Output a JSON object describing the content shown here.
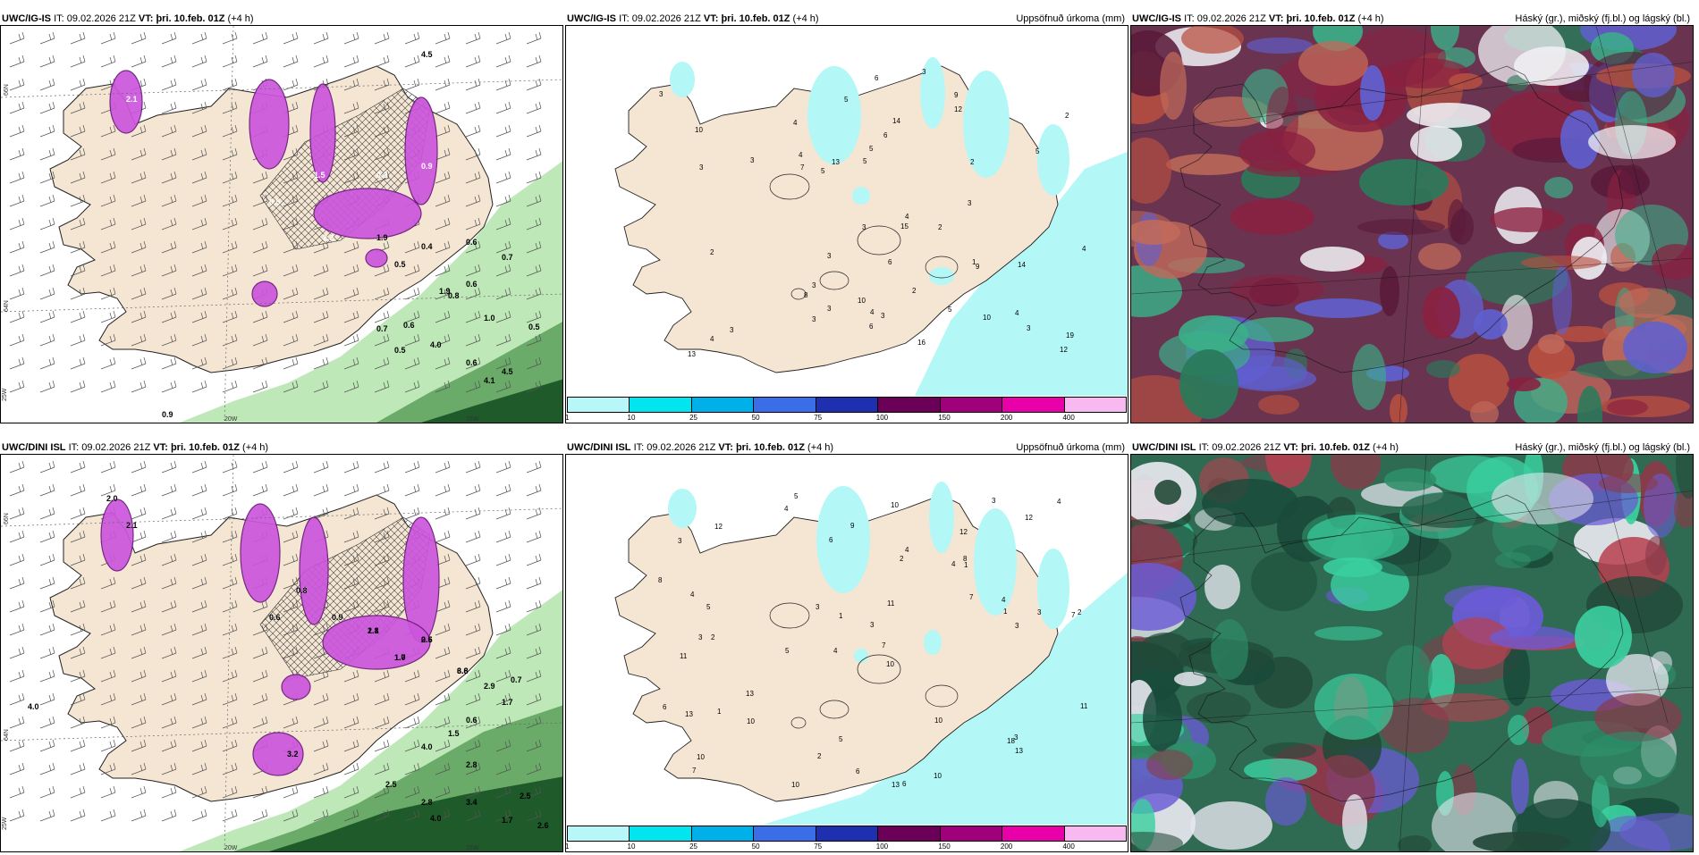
{
  "panels": [
    {
      "model": "UWC/IG-IS",
      "it_label": "IT:",
      "it": "09.02.2026 21Z",
      "vt_label": "VT:",
      "vt": "þri. 10.feb. 01Z",
      "lead": "(+4 h)",
      "right_title": "",
      "kind": "icing",
      "axis": {
        "lat_top": "66N",
        "lat_mid": "64N",
        "lon_left": "25W",
        "lon_mid": "20W",
        "lon_right": "15W"
      },
      "values": [
        "2.1",
        "0.5",
        "1.5",
        "0.8",
        "0.9",
        "2.2",
        "1.9",
        "0.5",
        "0.4",
        "0.6",
        "0.7",
        "0.6",
        "1.0",
        "0.5",
        "4.0",
        "0.6",
        "0.7",
        "0.6",
        "1.9",
        "0.8",
        "4.5",
        "4.1",
        "0.9",
        "0.5",
        "4.5"
      ]
    },
    {
      "model": "UWC/IG-IS",
      "it_label": "IT:",
      "it": "09.02.2026 21Z",
      "vt_label": "VT:",
      "vt": "þri. 10.feb. 01Z",
      "lead": "(+4 h)",
      "right_title": "Uppsöfnuð úrkoma (mm)",
      "kind": "precip",
      "values": [
        "4",
        "14",
        "4",
        "6",
        "5",
        "3",
        "4",
        "9",
        "10",
        "8",
        "12",
        "7",
        "3",
        "6",
        "5",
        "4",
        "1",
        "2",
        "3",
        "2",
        "3",
        "3",
        "6",
        "2",
        "9",
        "12",
        "13",
        "6",
        "5",
        "2",
        "3",
        "3",
        "14",
        "13",
        "15",
        "16",
        "4",
        "2",
        "3",
        "10",
        "3",
        "3",
        "4",
        "3",
        "3",
        "5",
        "5",
        "3",
        "4",
        "19",
        "10",
        "5"
      ]
    },
    {
      "model": "UWC/IG-IS",
      "it_label": "IT:",
      "it": "09.02.2026 21Z",
      "vt_label": "VT:",
      "vt": "þri. 10.feb. 01Z",
      "lead": "(+4 h)",
      "right_title": "Háský (gr.), miðský (fj.bl.) og lágský (bl.)",
      "kind": "cloud"
    },
    {
      "model": "UWC/DINI ISL",
      "it_label": "IT:",
      "it": "09.02.2026 21Z",
      "vt_label": "VT:",
      "vt": "þri. 10.feb. 01Z",
      "lead": "(+4 h)",
      "right_title": "",
      "kind": "icing",
      "axis": {
        "lat_top": "66N",
        "lat_mid": "64N",
        "lon_left": "25W",
        "lon_mid": "20W",
        "lon_right": "15W"
      },
      "values": [
        "1.9",
        "2.8",
        "0.6",
        "0.9",
        "1.5",
        "2.1",
        "2.8",
        "1.0",
        "0.5",
        "3.6",
        "2.9",
        "0.7",
        "0.6",
        "1.7",
        "1.5",
        "4.0",
        "2.8",
        "2.5",
        "2.8",
        "3.4",
        "2.5",
        "4.0",
        "1.7",
        "2.6",
        "3.2",
        "2.0",
        "2.1",
        "4.0",
        "0.6",
        "0.8",
        "0.9",
        "1.1",
        "1.7",
        "2.6",
        "6.8"
      ]
    },
    {
      "model": "UWC/DINI ISL",
      "it_label": "IT:",
      "it": "09.02.2026 21Z",
      "vt_label": "VT:",
      "vt": "þri. 10.feb. 01Z",
      "lead": "(+4 h)",
      "right_title": "Uppsöfnuð úrkoma (mm)",
      "kind": "precip",
      "values": [
        "5",
        "12",
        "7",
        "4",
        "10",
        "2",
        "3",
        "4",
        "11",
        "2",
        "3",
        "7",
        "4",
        "5",
        "13",
        "6",
        "5",
        "3",
        "7",
        "13",
        "5",
        "3",
        "2",
        "3",
        "6",
        "4",
        "1",
        "1",
        "3",
        "13",
        "18",
        "4",
        "1",
        "3",
        "10",
        "11",
        "4",
        "2",
        "4",
        "9",
        "10",
        "10",
        "10",
        "12",
        "6",
        "1",
        "13",
        "8",
        "8",
        "7",
        "6",
        "3",
        "11",
        "12",
        "10",
        "10"
      ]
    },
    {
      "model": "UWC/DINI ISL",
      "it_label": "IT:",
      "it": "09.02.2026 21Z",
      "vt_label": "VT:",
      "vt": "þri. 10.feb. 01Z",
      "lead": "(+4 h)",
      "right_title": "Háský (gr.), miðský (fj.bl.) og lágský (bl.)",
      "kind": "cloud"
    }
  ],
  "colorbar": {
    "ticks": [
      "1",
      "10",
      "25",
      "50",
      "75",
      "100",
      "150",
      "200",
      "400"
    ],
    "colors": [
      "#b8f7f7",
      "#00e5ee",
      "#00b0e8",
      "#3a6ee8",
      "#1e2fb0",
      "#6a0058",
      "#a0007a",
      "#e800a8",
      "#f8b8f0"
    ]
  },
  "colors": {
    "land": "#f5e6d3",
    "sea": "#ffffff",
    "icing": "#cc55dd",
    "precip": "#b3f7f7",
    "green_light": "#b8e6b0",
    "green_dark": "#1f5a2a"
  }
}
